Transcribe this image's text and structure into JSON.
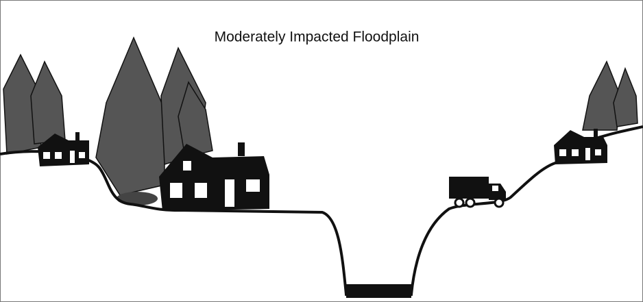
{
  "title": "Moderately Impacted Floodplain"
}
